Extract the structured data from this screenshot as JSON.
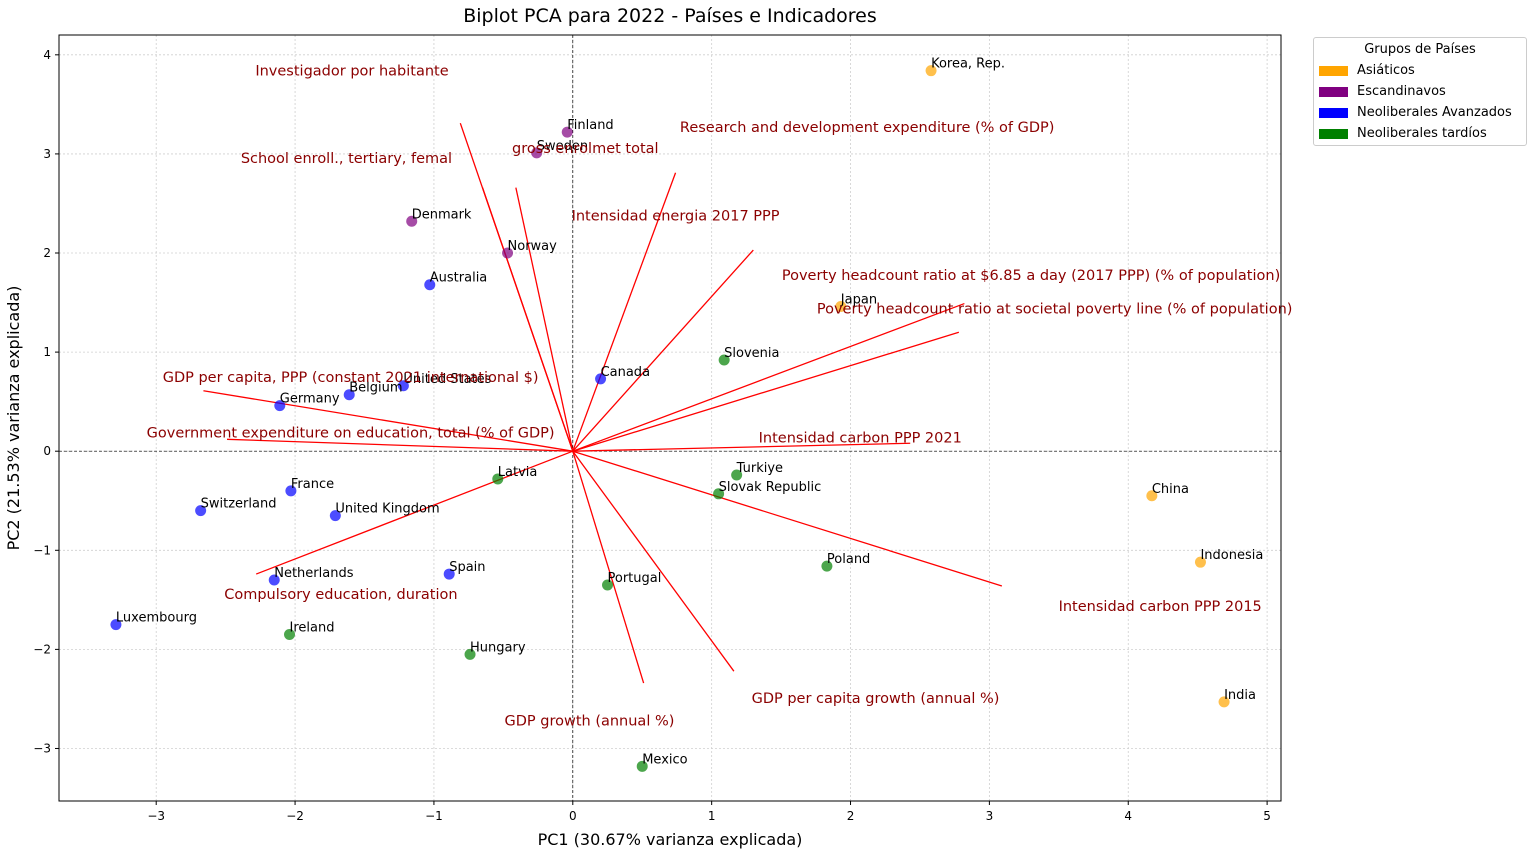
{
  "chart_data": {
    "type": "scatter",
    "title": "Biplot PCA para 2022 - Países e Indicadores",
    "xlabel": "PC1 (30.67% varianza explicada)",
    "ylabel": "PC2 (21.53% varianza explicada)",
    "xlim": [
      -3.7,
      5.1
    ],
    "ylim": [
      -3.53,
      4.2
    ],
    "xticks": [
      -3,
      -2,
      -1,
      0,
      1,
      2,
      3,
      4,
      5
    ],
    "yticks": [
      -3,
      -2,
      -1,
      0,
      1,
      2,
      3,
      4
    ],
    "grid": true,
    "legend": {
      "title": "Grupos de Países",
      "placement": "outside right, top",
      "entries": [
        {
          "name": "Asiáticos",
          "color": "#ffa500"
        },
        {
          "name": "Escandinavos",
          "color": "#800080"
        },
        {
          "name": "Neoliberales Avanzados",
          "color": "#0000ff"
        },
        {
          "name": "Neoliberales tardíos",
          "color": "#008000"
        }
      ]
    },
    "points": [
      {
        "name": "Korea, Rep.",
        "group": "Asiáticos",
        "x": 2.58,
        "y": 3.84
      },
      {
        "name": "Japan",
        "group": "Asiáticos",
        "x": 1.93,
        "y": 1.46
      },
      {
        "name": "China",
        "group": "Asiáticos",
        "x": 4.17,
        "y": -0.45
      },
      {
        "name": "Indonesia",
        "group": "Asiáticos",
        "x": 4.52,
        "y": -1.12
      },
      {
        "name": "India",
        "group": "Asiáticos",
        "x": 4.69,
        "y": -2.53
      },
      {
        "name": "Finland",
        "group": "Escandinavos",
        "x": -0.04,
        "y": 3.22
      },
      {
        "name": "Sweden",
        "group": "Escandinavos",
        "x": -0.26,
        "y": 3.01
      },
      {
        "name": "Denmark",
        "group": "Escandinavos",
        "x": -1.16,
        "y": 2.32
      },
      {
        "name": "Norway",
        "group": "Escandinavos",
        "x": -0.47,
        "y": 2.0
      },
      {
        "name": "Australia",
        "group": "Neoliberales Avanzados",
        "x": -1.03,
        "y": 1.68
      },
      {
        "name": "Canada",
        "group": "Neoliberales Avanzados",
        "x": 0.2,
        "y": 0.73
      },
      {
        "name": "United States",
        "group": "Neoliberales Avanzados",
        "x": -1.22,
        "y": 0.66
      },
      {
        "name": "Belgium",
        "group": "Neoliberales Avanzados",
        "x": -1.61,
        "y": 0.57
      },
      {
        "name": "Germany",
        "group": "Neoliberales Avanzados",
        "x": -2.11,
        "y": 0.46
      },
      {
        "name": "France",
        "group": "Neoliberales Avanzados",
        "x": -2.03,
        "y": -0.4
      },
      {
        "name": "Switzerland",
        "group": "Neoliberales Avanzados",
        "x": -2.68,
        "y": -0.6
      },
      {
        "name": "United Kingdom",
        "group": "Neoliberales Avanzados",
        "x": -1.71,
        "y": -0.65
      },
      {
        "name": "Netherlands",
        "group": "Neoliberales Avanzados",
        "x": -2.15,
        "y": -1.3
      },
      {
        "name": "Spain",
        "group": "Neoliberales Avanzados",
        "x": -0.89,
        "y": -1.24
      },
      {
        "name": "Luxembourg",
        "group": "Neoliberales Avanzados",
        "x": -3.29,
        "y": -1.75
      },
      {
        "name": "Slovenia",
        "group": "Neoliberales tardíos",
        "x": 1.09,
        "y": 0.92
      },
      {
        "name": "Latvia",
        "group": "Neoliberales tardíos",
        "x": -0.54,
        "y": -0.28
      },
      {
        "name": "Turkiye",
        "group": "Neoliberales tardíos",
        "x": 1.18,
        "y": -0.24
      },
      {
        "name": "Slovak Republic",
        "group": "Neoliberales tardíos",
        "x": 1.05,
        "y": -0.43
      },
      {
        "name": "Poland",
        "group": "Neoliberales tardíos",
        "x": 1.83,
        "y": -1.16
      },
      {
        "name": "Portugal",
        "group": "Neoliberales tardíos",
        "x": 0.25,
        "y": -1.35
      },
      {
        "name": "Ireland",
        "group": "Neoliberales tardíos",
        "x": -2.04,
        "y": -1.85
      },
      {
        "name": "Hungary",
        "group": "Neoliberales tardíos",
        "x": -0.74,
        "y": -2.05
      },
      {
        "name": "Mexico",
        "group": "Neoliberales tardíos",
        "x": 0.5,
        "y": -3.18
      }
    ],
    "loadings": [
      {
        "label": "Investigador por habitante",
        "x": -0.81,
        "y": 3.31,
        "label_x": -1.59,
        "label_y": 3.84
      },
      {
        "label": "gross enrolmet total",
        "x": -0.41,
        "y": 2.66,
        "label_x": 0.09,
        "label_y": 3.06
      },
      {
        "label": "School enroll., tertiary, femal",
        "x": -0.65,
        "y": 2.66,
        "label_x": -1.63,
        "label_y": 2.96
      },
      {
        "label": "Research and development expenditure (% of GDP)",
        "x": 0.74,
        "y": 2.81,
        "label_x": 2.12,
        "label_y": 3.27
      },
      {
        "label": "Intensidad energia 2017 PPP",
        "x": 1.3,
        "y": 2.03,
        "label_x": 0.74,
        "label_y": 2.38
      },
      {
        "label": "Poverty headcount ratio at $6.85 a day (2017 PPP) (% of population)",
        "x": 2.82,
        "y": 1.49,
        "label_x": 3.3,
        "label_y": 1.78
      },
      {
        "label": "Poverty headcount ratio at societal poverty line (% of population)",
        "x": 2.78,
        "y": 1.2,
        "label_x": 3.47,
        "label_y": 1.44
      },
      {
        "label": "GDP per capita, PPP (constant 2021 international $)",
        "x": -2.66,
        "y": 0.61,
        "label_x": -1.6,
        "label_y": 0.75
      },
      {
        "label": "Government expenditure on education, total (% of GDP)",
        "x": -2.49,
        "y": 0.12,
        "label_x": -1.6,
        "label_y": 0.19
      },
      {
        "label": "Intensidad carbon PPP 2021",
        "x": 2.43,
        "y": 0.08,
        "label_x": 2.07,
        "label_y": 0.14
      },
      {
        "label": "Intensidad carbon PPP 2015",
        "x": 3.09,
        "y": -1.36,
        "label_x": 4.23,
        "label_y": -1.56
      },
      {
        "label": "Compulsory education, duration",
        "x": -2.28,
        "y": -1.24,
        "label_x": -1.67,
        "label_y": -1.44
      },
      {
        "label": "GDP per capita growth (annual %)",
        "x": 1.16,
        "y": -2.22,
        "label_x": 2.18,
        "label_y": -2.49
      },
      {
        "label": "GDP growth (annual %)",
        "x": 0.51,
        "y": -2.34,
        "label_x": 0.12,
        "label_y": -2.72
      }
    ]
  }
}
